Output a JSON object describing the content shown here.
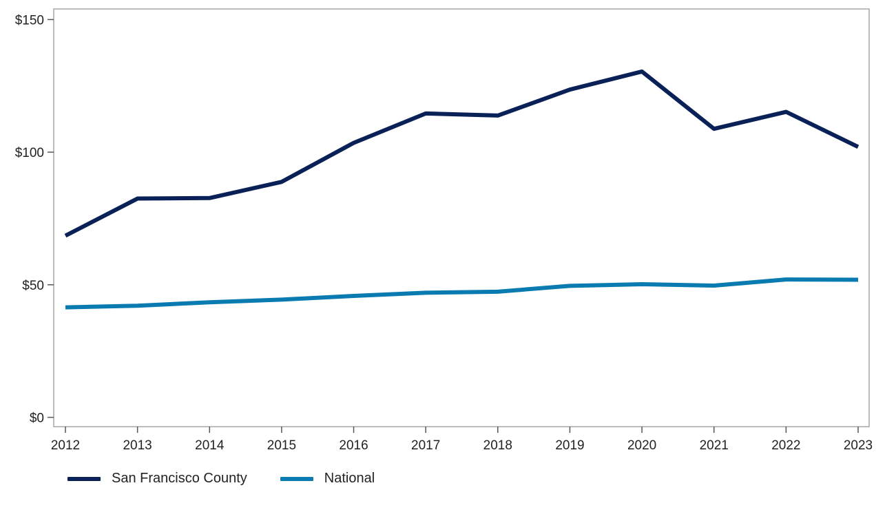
{
  "chart_data": {
    "type": "line",
    "x": [
      2012,
      2013,
      2014,
      2015,
      2016,
      2017,
      2018,
      2019,
      2020,
      2021,
      2022,
      2023
    ],
    "x_tick_labels": [
      "2012",
      "2013",
      "2014",
      "2015",
      "2016",
      "2017",
      "2018",
      "2019",
      "2020",
      "2021",
      "2022",
      "2023"
    ],
    "y_ticks": [
      0,
      50,
      100,
      150
    ],
    "y_tick_labels": [
      "$0",
      "$50",
      "$100",
      "$150"
    ],
    "ylim": [
      -3.5,
      154
    ],
    "xlim": [
      2012,
      2023
    ],
    "grid": false,
    "legend_position": "bottom-left",
    "series": [
      {
        "name": "San Francisco County",
        "color": "#0a2158",
        "values": [
          68.5,
          82.5,
          82.7,
          88.8,
          103.5,
          114.6,
          113.8,
          123.6,
          130.4,
          108.8,
          115.2,
          102.0
        ]
      },
      {
        "name": "National",
        "color": "#0a7bb0",
        "values": [
          41.5,
          42.1,
          43.4,
          44.4,
          45.8,
          47.0,
          47.4,
          49.6,
          50.2,
          49.7,
          52.0,
          51.9
        ]
      }
    ]
  }
}
